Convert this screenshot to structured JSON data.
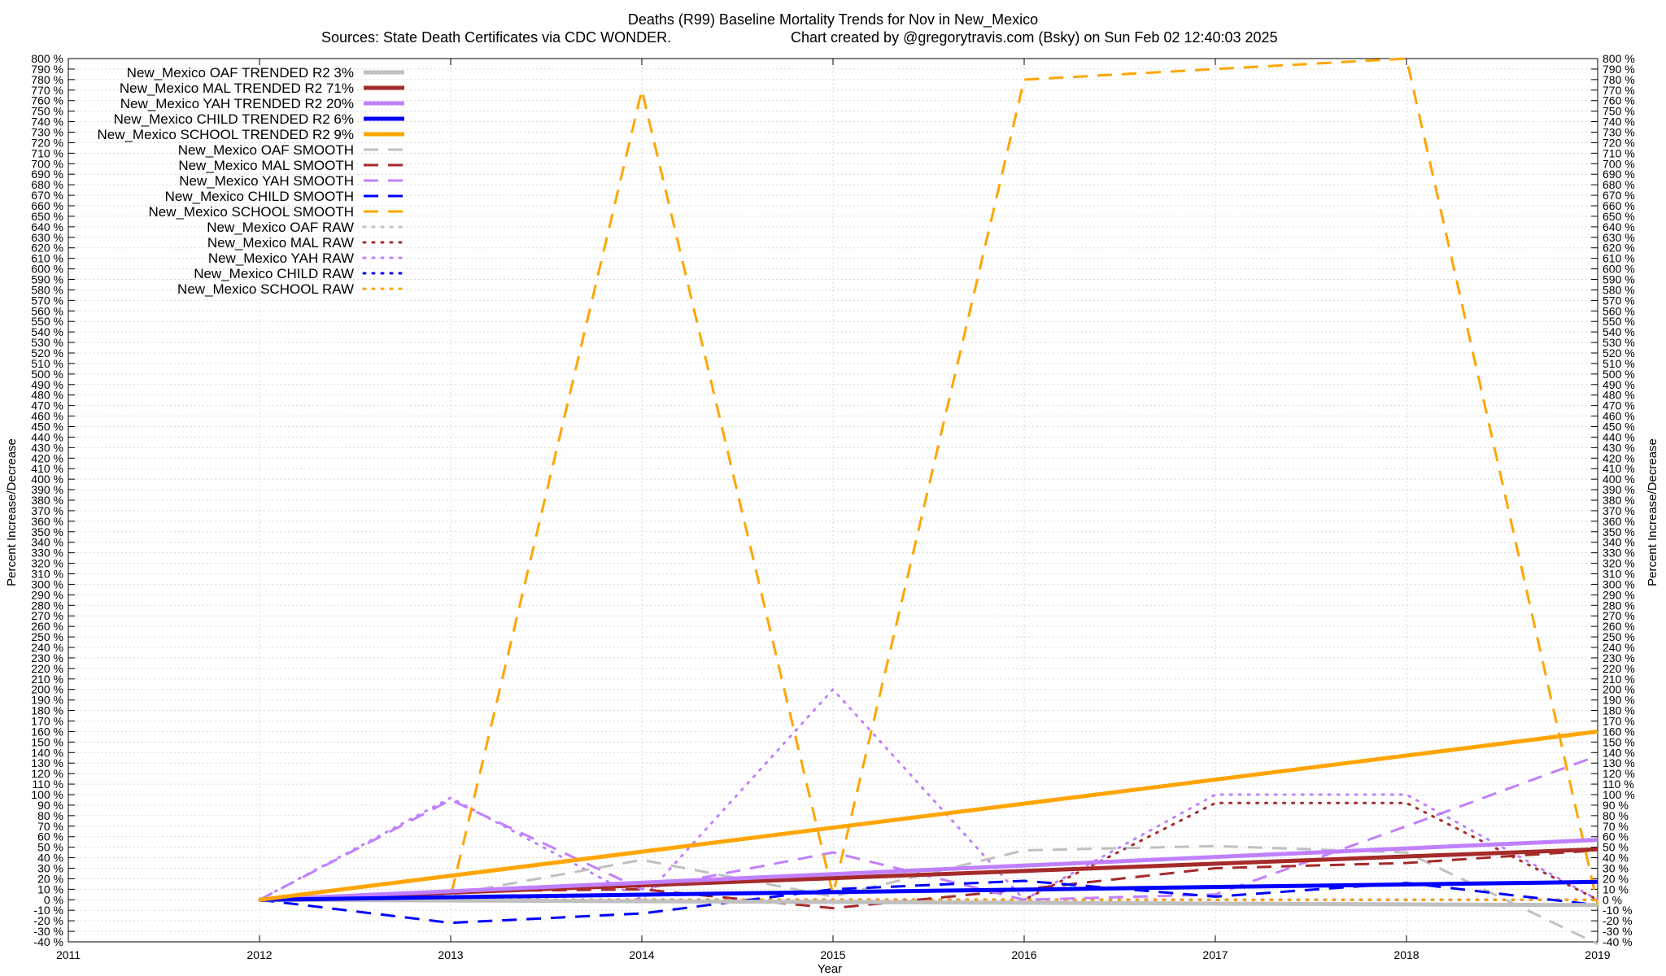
{
  "chart_data": {
    "type": "line",
    "title": "Deaths (R99)  Baseline Mortality Trends for Nov in New_Mexico",
    "subtitle_left": "Sources: State Death Certificates via CDC WONDER.",
    "subtitle_right": "Chart created by @gregorytravis.com (Bsky) on Sun Feb 02 12:40:03 2025",
    "xlabel": "Year",
    "ylabel_left": "Percent Increase/Decrease",
    "ylabel_right": "Percent Increase/Decrease",
    "xlim": [
      2011,
      2019
    ],
    "ylim": [
      -40,
      800
    ],
    "x_ticks": [
      "2011",
      "2012",
      "2013",
      "2014",
      "2015",
      "2016",
      "2017",
      "2018",
      "2019"
    ],
    "y_tick_step": 10,
    "y_tick_suffix": " %",
    "grid": true,
    "legend_position": "top-left",
    "series": [
      {
        "name": "New_Mexico OAF TRENDED R2  3%",
        "color": "#c0c0c0",
        "style": "solid",
        "x": [
          2012,
          2019
        ],
        "values": [
          0,
          -5
        ]
      },
      {
        "name": "New_Mexico MAL TRENDED R2  71%",
        "color": "#a52a2a",
        "style": "solid",
        "x": [
          2012,
          2019
        ],
        "values": [
          0,
          48
        ]
      },
      {
        "name": "New_Mexico YAH TRENDED R2  20%",
        "color": "#c080ff",
        "style": "solid",
        "x": [
          2012,
          2019
        ],
        "values": [
          0,
          57
        ]
      },
      {
        "name": "New_Mexico CHILD TRENDED R2  6%",
        "color": "#0000ff",
        "style": "solid",
        "x": [
          2012,
          2019
        ],
        "values": [
          0,
          17
        ]
      },
      {
        "name": "New_Mexico SCHOOL TRENDED R2  9%",
        "color": "#ffa500",
        "style": "solid",
        "x": [
          2012,
          2019
        ],
        "values": [
          0,
          160
        ]
      },
      {
        "name": "New_Mexico OAF SMOOTH",
        "color": "#c0c0c0",
        "style": "dashed",
        "x": [
          2012,
          2013,
          2014,
          2015,
          2016,
          2017,
          2018,
          2019
        ],
        "values": [
          0,
          5,
          38,
          3,
          47,
          51,
          45,
          -42
        ]
      },
      {
        "name": "New_Mexico MAL SMOOTH",
        "color": "#a52a2a",
        "style": "dashed",
        "x": [
          2012,
          2013,
          2014,
          2015,
          2016,
          2017,
          2018,
          2019
        ],
        "values": [
          0,
          8,
          10,
          -8,
          10,
          30,
          35,
          47
        ]
      },
      {
        "name": "New_Mexico YAH SMOOTH",
        "color": "#c080ff",
        "style": "dashed",
        "x": [
          2012,
          2013,
          2014,
          2015,
          2016,
          2017,
          2018,
          2019
        ],
        "values": [
          0,
          95,
          10,
          45,
          0,
          5,
          70,
          137
        ]
      },
      {
        "name": "New_Mexico CHILD SMOOTH",
        "color": "#0000ff",
        "style": "dashed",
        "x": [
          2012,
          2013,
          2014,
          2015,
          2016,
          2017,
          2018,
          2019
        ],
        "values": [
          0,
          -22,
          -13,
          10,
          18,
          3,
          16,
          -5
        ]
      },
      {
        "name": "New_Mexico SCHOOL SMOOTH",
        "color": "#ffa500",
        "style": "dashed",
        "x": [
          2012,
          2013,
          2014,
          2015,
          2016,
          2017,
          2018,
          2019
        ],
        "values": [
          0,
          3,
          770,
          5,
          780,
          790,
          800,
          -5
        ]
      },
      {
        "name": "New_Mexico OAF RAW",
        "color": "#c0c0c0",
        "style": "dotted",
        "x": [
          2012,
          2013,
          2014,
          2015,
          2016,
          2017,
          2018,
          2019
        ],
        "values": [
          0,
          0,
          0,
          0,
          0,
          0,
          0,
          0
        ]
      },
      {
        "name": "New_Mexico MAL RAW",
        "color": "#a52a2a",
        "style": "dotted",
        "x": [
          2012,
          2013,
          2014,
          2015,
          2016,
          2017,
          2018,
          2019
        ],
        "values": [
          0,
          0,
          0,
          0,
          0,
          92,
          92,
          0
        ]
      },
      {
        "name": "New_Mexico YAH RAW",
        "color": "#c080ff",
        "style": "dotted",
        "x": [
          2012,
          2013,
          2014,
          2015,
          2016,
          2017,
          2018,
          2019
        ],
        "values": [
          0,
          97,
          0,
          200,
          0,
          100,
          100,
          0
        ]
      },
      {
        "name": "New_Mexico CHILD RAW",
        "color": "#0000ff",
        "style": "dotted",
        "x": [
          2012,
          2013,
          2014,
          2015,
          2016,
          2017,
          2018,
          2019
        ],
        "values": [
          0,
          0,
          0,
          0,
          0,
          0,
          0,
          0
        ]
      },
      {
        "name": "New_Mexico SCHOOL RAW",
        "color": "#ffa500",
        "style": "dotted",
        "x": [
          2012,
          2013,
          2014,
          2015,
          2016,
          2017,
          2018,
          2019
        ],
        "values": [
          0,
          0,
          0,
          0,
          0,
          0,
          0,
          0
        ]
      }
    ]
  }
}
